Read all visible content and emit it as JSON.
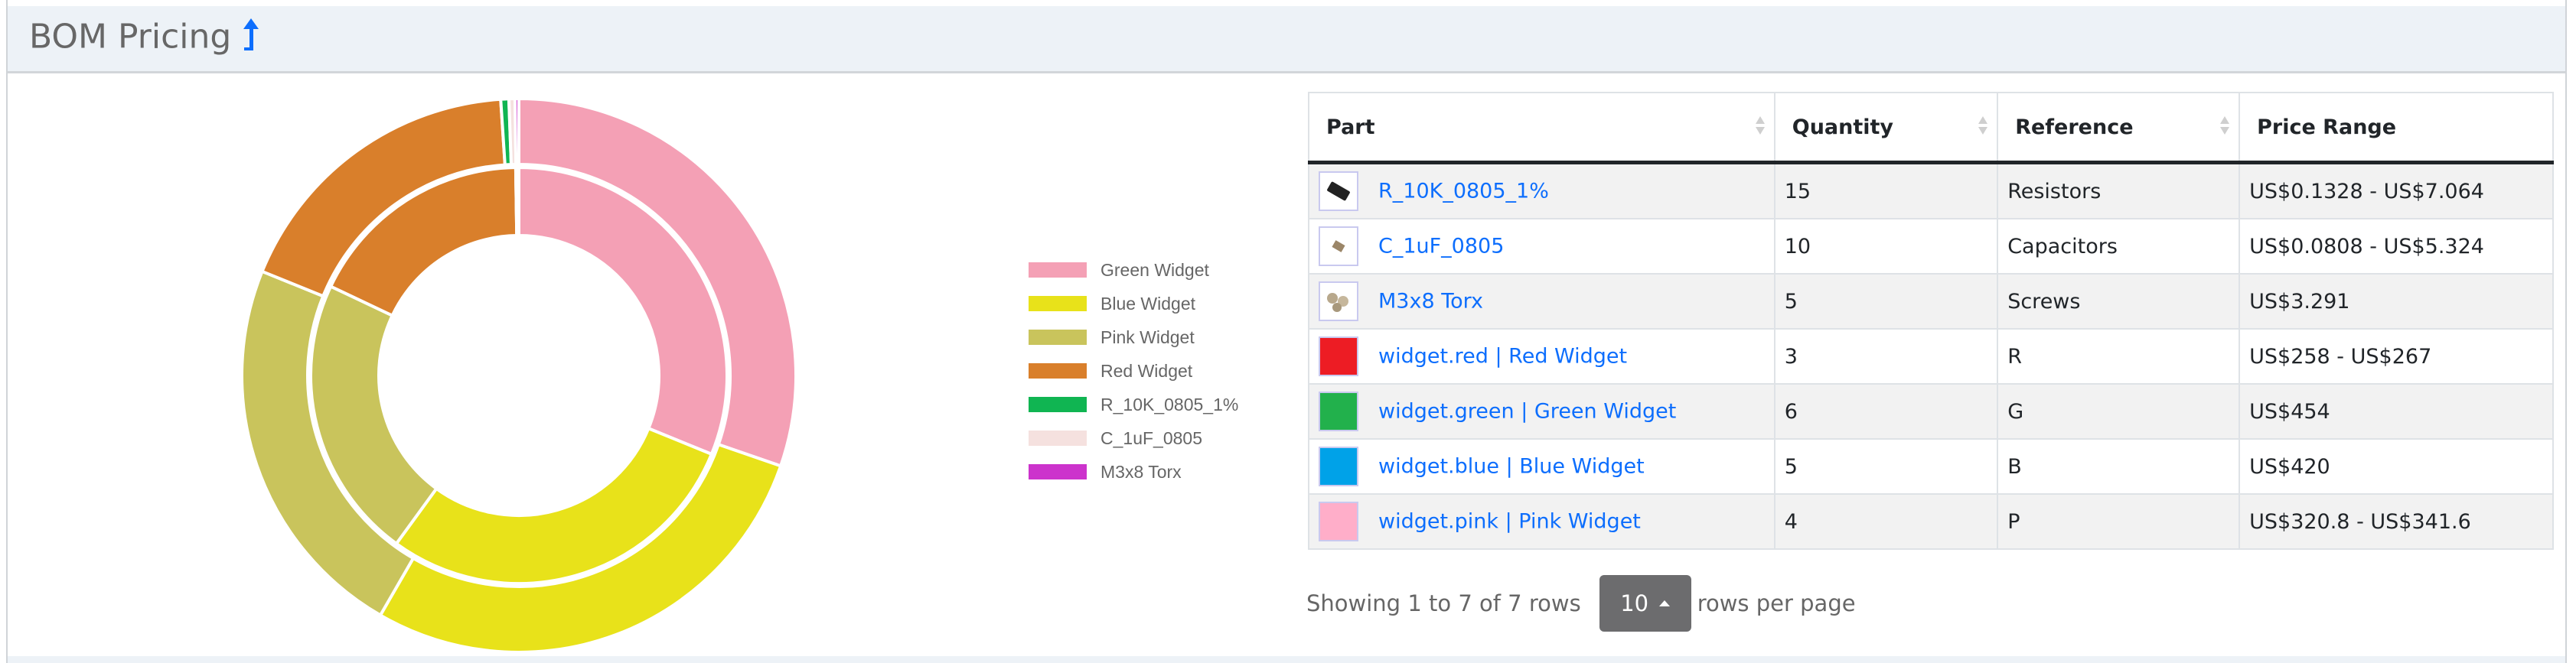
{
  "header": {
    "title": "BOM Pricing",
    "icon": "level-up-arrow-icon",
    "accent": "#0d6efd"
  },
  "chart_data": {
    "type": "pie",
    "subtype": "nested-donut",
    "categories": [
      "Green Widget",
      "Blue Widget",
      "Pink Widget",
      "Red Widget",
      "R_10K_0805_1%",
      "C_1uF_0805",
      "M3x8 Torx"
    ],
    "colors": [
      "#f4a0b5",
      "#e8e21a",
      "#c9c45c",
      "#d97f2b",
      "#10b552",
      "#f5e1df",
      "#cc33cc"
    ],
    "series": [
      {
        "ring": "inner",
        "values": [
          454,
          420,
          320.8,
          258,
          0.1328,
          0.0808,
          3.291
        ]
      },
      {
        "ring": "outer",
        "values": [
          454,
          420,
          341.6,
          267,
          7.064,
          5.324,
          3.291
        ]
      }
    ],
    "legend": "right"
  },
  "table": {
    "columns": [
      "Part",
      "Quantity",
      "Reference",
      "Price Range"
    ],
    "rows": [
      {
        "part": "R_10K_0805_1%",
        "quantity": "15",
        "reference": "Resistors",
        "price": "US$0.1328 - US$7.064",
        "thumb": "resistor-thumbnail",
        "color": ""
      },
      {
        "part": "C_1uF_0805",
        "quantity": "10",
        "reference": "Capacitors",
        "price": "US$0.0808 - US$5.324",
        "thumb": "capacitor-thumbnail",
        "color": ""
      },
      {
        "part": "M3x8 Torx",
        "quantity": "5",
        "reference": "Screws",
        "price": "US$3.291",
        "thumb": "screws-thumbnail",
        "color": ""
      },
      {
        "part": "widget.red | Red Widget",
        "quantity": "3",
        "reference": "R",
        "price": "US$258 - US$267",
        "thumb": "color-swatch",
        "color": "#ed1c24"
      },
      {
        "part": "widget.green | Green Widget",
        "quantity": "6",
        "reference": "G",
        "price": "US$454",
        "thumb": "color-swatch",
        "color": "#22b14c"
      },
      {
        "part": "widget.blue | Blue Widget",
        "quantity": "5",
        "reference": "B",
        "price": "US$420",
        "thumb": "color-swatch",
        "color": "#00a2e8"
      },
      {
        "part": "widget.pink | Pink Widget",
        "quantity": "4",
        "reference": "P",
        "price": "US$320.8 - US$341.6",
        "thumb": "color-swatch",
        "color": "#ffaec9"
      }
    ]
  },
  "pagination": {
    "showing": "Showing 1 to 7 of 7 rows",
    "page_size": "10",
    "suffix": "rows per page"
  }
}
